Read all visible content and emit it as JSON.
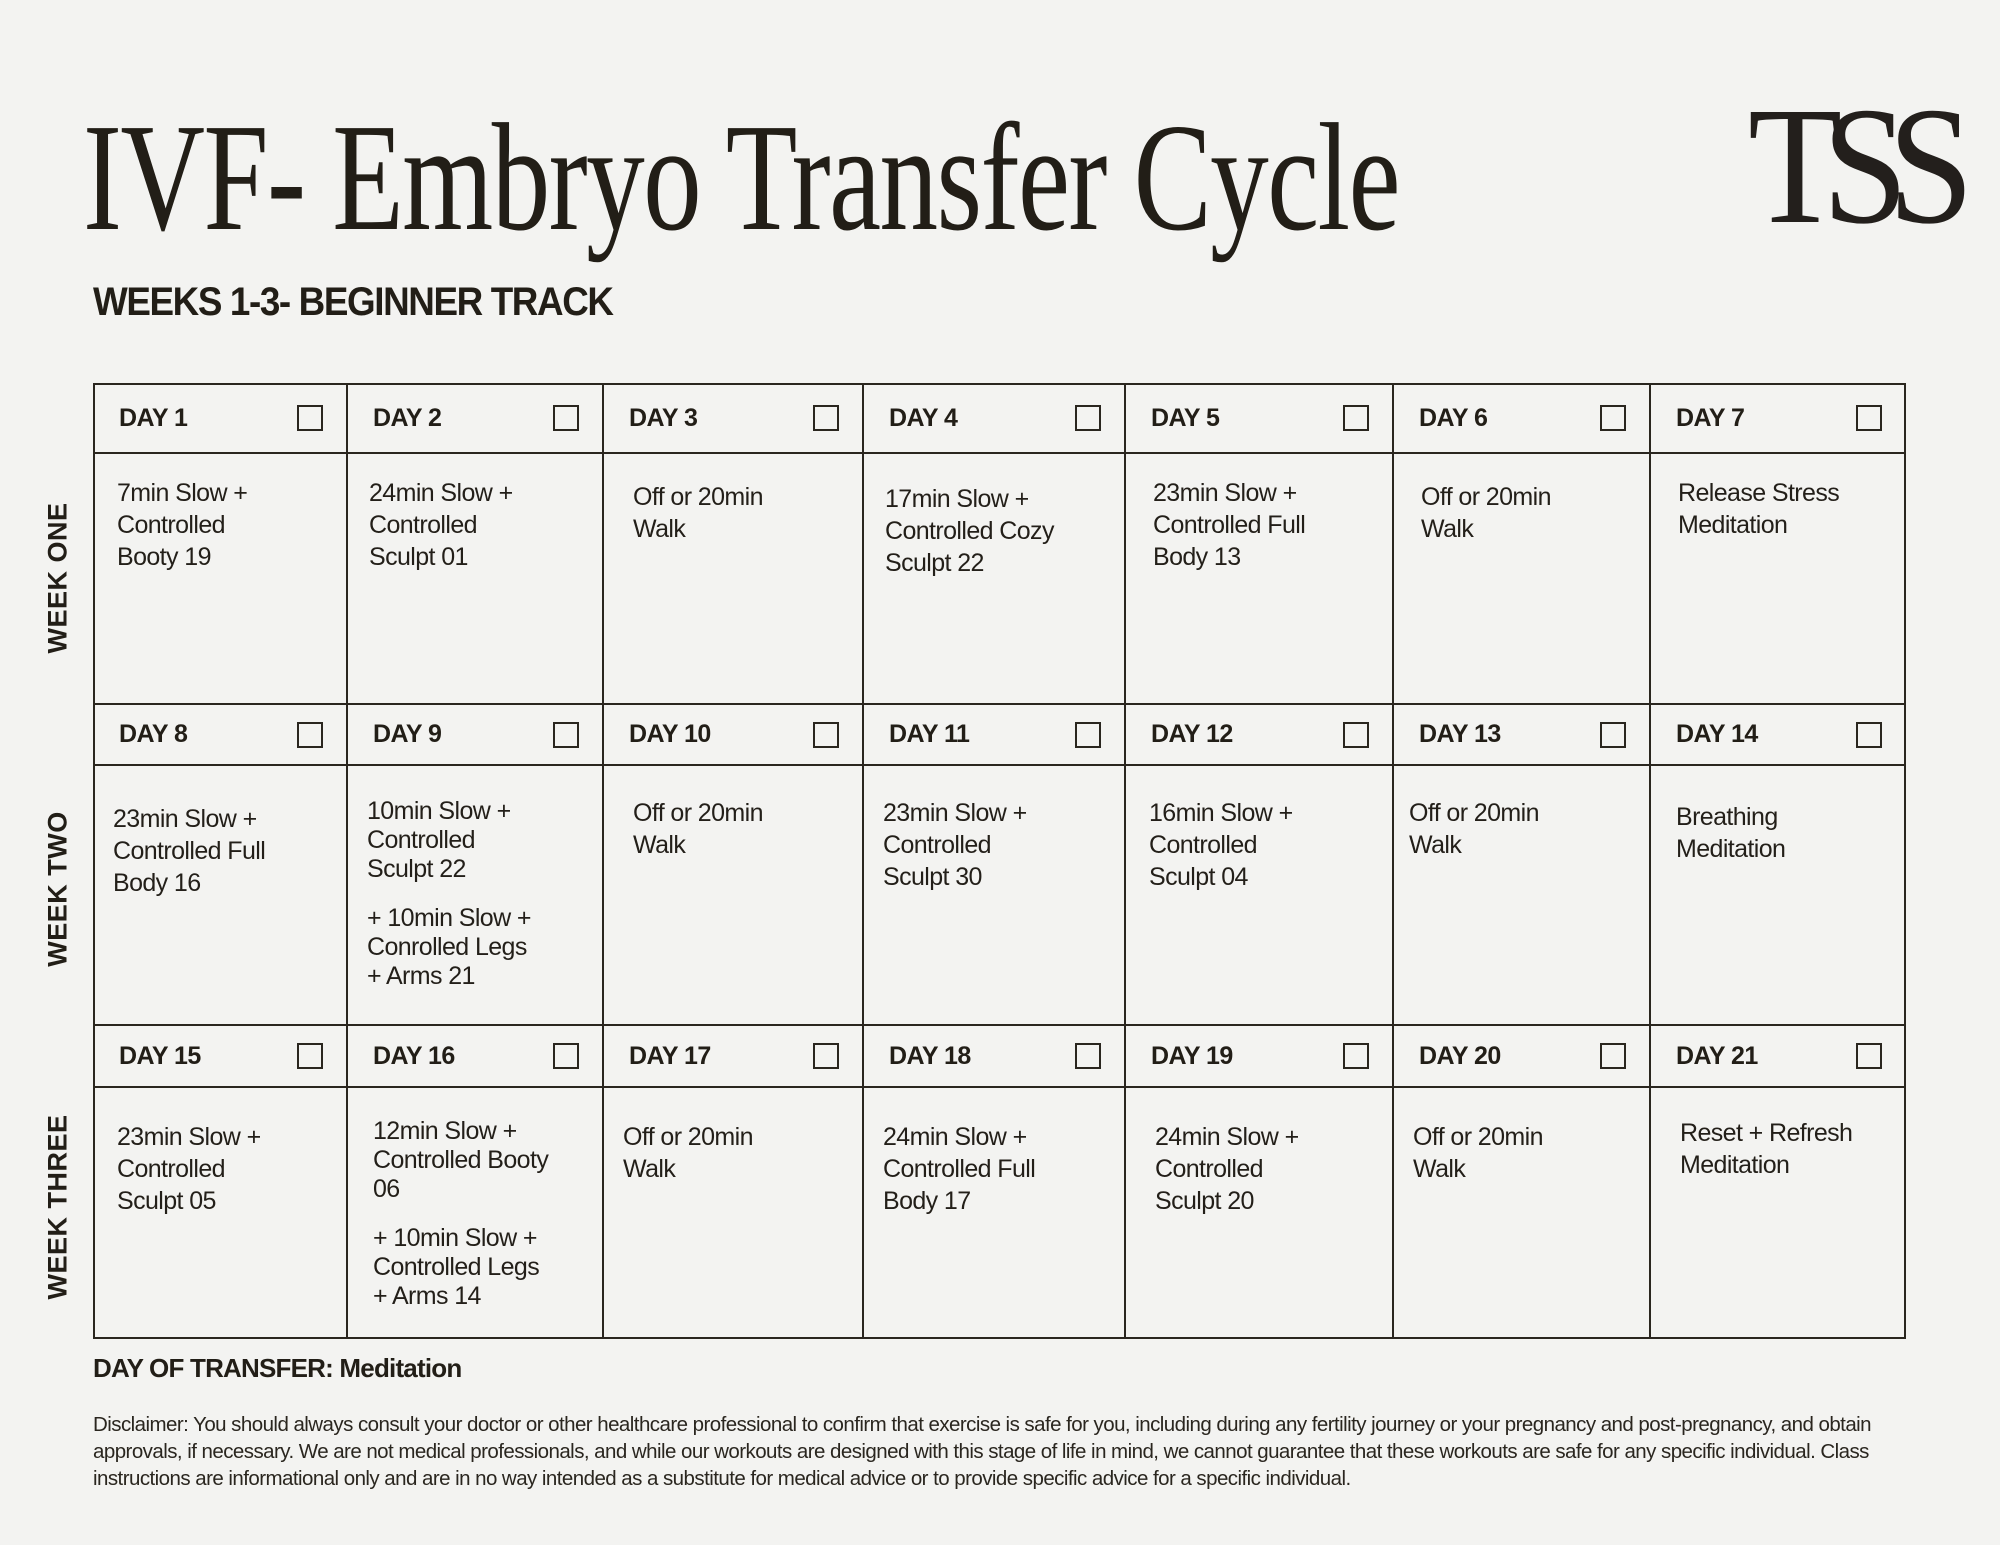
{
  "header": {
    "title": "IVF- Embryo Transfer Cycle",
    "subtitle": "WEEKS 1-3- BEGINNER TRACK",
    "logo_text": "TSS"
  },
  "colors": {
    "background": "#f3f3f1",
    "ink": "#221e17",
    "grid_line": "#2a261f"
  },
  "weeks": [
    {
      "label": "WEEK ONE",
      "days": [
        {
          "label": "DAY 1",
          "checked": false,
          "lines": [
            "7min Slow +",
            "Controlled",
            "Booty 19"
          ]
        },
        {
          "label": "DAY 2",
          "checked": false,
          "lines": [
            "24min Slow +",
            "Controlled",
            "Sculpt 01"
          ]
        },
        {
          "label": "DAY 3",
          "checked": false,
          "lines": [
            "Off or 20min",
            "Walk"
          ]
        },
        {
          "label": "DAY 4",
          "checked": false,
          "lines": [
            "17min Slow +",
            "Controlled Cozy",
            "Sculpt 22"
          ]
        },
        {
          "label": "DAY 5",
          "checked": false,
          "lines": [
            "23min Slow +",
            "Controlled Full",
            "Body 13"
          ]
        },
        {
          "label": "DAY 6",
          "checked": false,
          "lines": [
            "Off or 20min",
            "Walk"
          ]
        },
        {
          "label": "DAY 7",
          "checked": false,
          "lines": [
            "Release Stress",
            "Meditation"
          ]
        }
      ]
    },
    {
      "label": "WEEK TWO",
      "days": [
        {
          "label": "DAY 8",
          "checked": false,
          "lines": [
            "23min Slow +",
            "Controlled Full",
            "Body 16"
          ]
        },
        {
          "label": "DAY 9",
          "checked": false,
          "lines": [
            "10min Slow +",
            "Controlled",
            "Sculpt 22"
          ],
          "extra_lines": [
            "+ 10min Slow +",
            "Conrolled Legs",
            "+ Arms 21"
          ]
        },
        {
          "label": "DAY 10",
          "checked": false,
          "lines": [
            "Off or 20min",
            "Walk"
          ]
        },
        {
          "label": "DAY 11",
          "checked": false,
          "lines": [
            "23min Slow +",
            "Controlled",
            "Sculpt 30"
          ]
        },
        {
          "label": "DAY 12",
          "checked": false,
          "lines": [
            "16min Slow +",
            "Controlled",
            "Sculpt 04"
          ]
        },
        {
          "label": "DAY 13",
          "checked": false,
          "lines": [
            "Off or 20min",
            "Walk"
          ]
        },
        {
          "label": "DAY 14",
          "checked": false,
          "lines": [
            "Breathing",
            "Meditation"
          ]
        }
      ]
    },
    {
      "label": "WEEK THREE",
      "days": [
        {
          "label": "DAY 15",
          "checked": false,
          "lines": [
            "23min Slow +",
            "Controlled",
            "Sculpt 05"
          ]
        },
        {
          "label": "DAY 16",
          "checked": false,
          "lines": [
            "12min Slow +",
            "Controlled Booty",
            "06"
          ],
          "extra_lines": [
            "+ 10min Slow +",
            "Controlled Legs",
            "+ Arms 14"
          ]
        },
        {
          "label": "DAY 17",
          "checked": false,
          "lines": [
            "Off or 20min",
            "Walk"
          ]
        },
        {
          "label": "DAY 18",
          "checked": false,
          "lines": [
            "24min Slow +",
            "Controlled Full",
            "Body 17"
          ]
        },
        {
          "label": "DAY 19",
          "checked": false,
          "lines": [
            "24min Slow +",
            "Controlled",
            "Sculpt 20"
          ]
        },
        {
          "label": "DAY 20",
          "checked": false,
          "lines": [
            "Off or 20min",
            "Walk"
          ]
        },
        {
          "label": "DAY 21",
          "checked": false,
          "lines": [
            "Reset + Refresh",
            "Meditation"
          ]
        }
      ]
    }
  ],
  "footer": {
    "day_of_transfer": "DAY OF TRANSFER: Meditation",
    "disclaimer": "Disclaimer: You should always consult your doctor or other healthcare professional to confirm that exercise is safe for you, including during any fertility journey or your pregnancy and post-pregnancy, and obtain approvals, if necessary. We are not medical professionals, and while our workouts are designed with this stage of life in mind, we cannot guarantee that these workouts are safe for any specific individual. Class instructions are informational only and are in no way intended as a substitute for medical advice or to provide specific advice for a specific individual."
  }
}
